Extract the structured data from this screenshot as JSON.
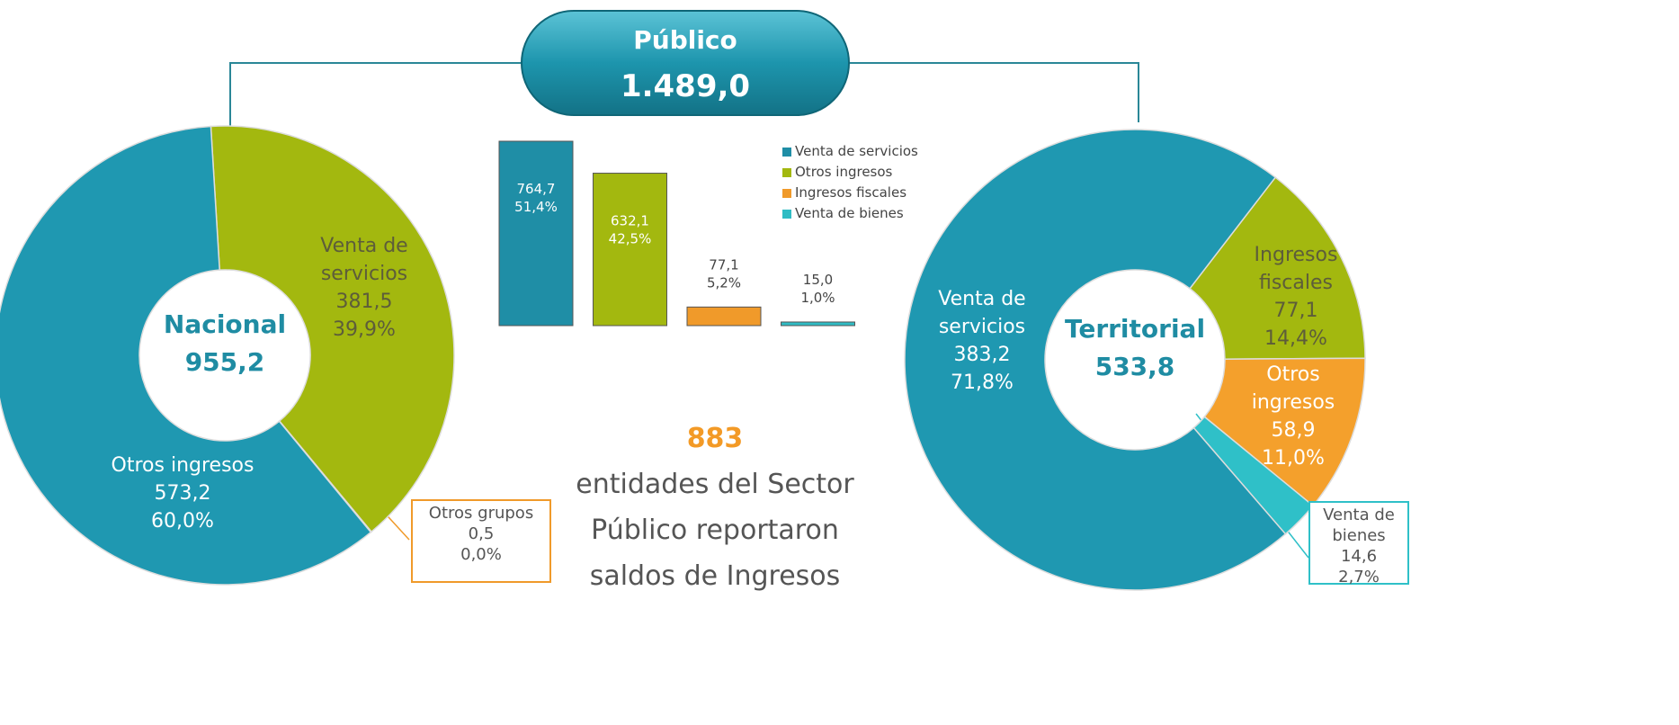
{
  "header": {
    "title": "Público",
    "total_label": "1.489,0"
  },
  "note": {
    "count": "883",
    "text": "entidades del Sector Público reportaron saldos de Ingresos"
  },
  "chart_data": [
    {
      "type": "bar",
      "categories": [
        "Venta de servicios",
        "Otros ingresos",
        "Ingresos fiscales",
        "Venta de bienes"
      ],
      "values": [
        764.7,
        632.1,
        77.1,
        15.0
      ],
      "value_labels": [
        "764,7",
        "632,1",
        "77,1",
        "15,0"
      ],
      "percents": [
        51.4,
        42.5,
        5.2,
        1.0
      ],
      "percent_labels": [
        "51,4%",
        "42,5%",
        "5,2%",
        "1,0%"
      ],
      "colors": [
        "#1f8ea6",
        "#a3b80f",
        "#f09a2a",
        "#2fbcc4"
      ],
      "legend": "upper right"
    },
    {
      "type": "donut",
      "title": "Nacional",
      "total_label": "955,2",
      "categories": [
        "Venta de servicios",
        "Otros grupos",
        "Otros ingresos"
      ],
      "values": [
        381.5,
        0.5,
        573.2
      ],
      "value_labels": [
        "381,5",
        "0,5",
        "573,2"
      ],
      "percents": [
        39.9,
        0.0,
        60.0
      ],
      "percent_labels": [
        "39,9%",
        "0,0%",
        "60,0%"
      ],
      "colors": [
        "#a3b80f",
        "#f09a2a",
        "#1f98b1"
      ]
    },
    {
      "type": "donut",
      "title": "Territorial",
      "total_label": "533,8",
      "categories": [
        "Ingresos fiscales",
        "Otros ingresos",
        "Venta de bienes",
        "Venta de servicios"
      ],
      "values": [
        77.1,
        58.9,
        14.6,
        383.2
      ],
      "value_labels": [
        "77,1",
        "58,9",
        "14,6",
        "383,2"
      ],
      "percents": [
        14.4,
        11.0,
        2.7,
        71.8
      ],
      "percent_labels": [
        "14,4%",
        "11,0%",
        "2,7%",
        "71,8%"
      ],
      "colors": [
        "#a3b80f",
        "#f4a02c",
        "#2fc0c8",
        "#1f98b1"
      ]
    }
  ]
}
